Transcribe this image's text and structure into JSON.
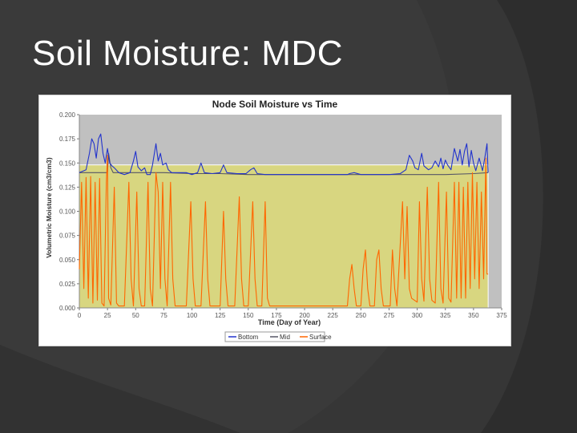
{
  "slide": {
    "title": "Soil Moisture: MDC"
  },
  "colors": {
    "background": "#3a3a3a",
    "title": "#ffffff",
    "plot_gray": "#c0c0c0",
    "highlight_fill": "#d8d680",
    "bottom": "#2233cc",
    "mid": "#555566",
    "surface": "#ff6600"
  },
  "chart_data": {
    "type": "line",
    "title": "Node Soil Moisture vs Time",
    "xlabel": "Time (Day of Year)",
    "ylabel": "Volumetric Moisture (cm3/cm3)",
    "xlim": [
      0,
      375
    ],
    "ylim": [
      0.0,
      0.2
    ],
    "xticks": [
      "0",
      "25",
      "50",
      "75",
      "100",
      "125",
      "150",
      "175",
      "200",
      "225",
      "250",
      "275",
      "300",
      "325",
      "350",
      "375"
    ],
    "yticks": [
      "0.000",
      "0.025",
      "0.050",
      "0.075",
      "0.100",
      "0.125",
      "0.150",
      "0.175",
      "0.200"
    ],
    "highlight_region": {
      "x": [
        0,
        363
      ],
      "y": [
        0.0,
        0.148
      ]
    },
    "grid": false,
    "legend_position": "bottom-center",
    "series": [
      {
        "name": "Bottom",
        "color": "#2233cc",
        "points": [
          [
            0,
            0.14
          ],
          [
            6,
            0.143
          ],
          [
            9,
            0.16
          ],
          [
            11,
            0.175
          ],
          [
            13,
            0.17
          ],
          [
            15,
            0.155
          ],
          [
            17,
            0.175
          ],
          [
            19,
            0.18
          ],
          [
            21,
            0.16
          ],
          [
            23,
            0.15
          ],
          [
            25,
            0.165
          ],
          [
            27,
            0.15
          ],
          [
            29,
            0.147
          ],
          [
            31,
            0.145
          ],
          [
            35,
            0.14
          ],
          [
            40,
            0.138
          ],
          [
            45,
            0.14
          ],
          [
            48,
            0.152
          ],
          [
            50,
            0.162
          ],
          [
            52,
            0.146
          ],
          [
            55,
            0.142
          ],
          [
            58,
            0.145
          ],
          [
            60,
            0.138
          ],
          [
            63,
            0.138
          ],
          [
            65,
            0.148
          ],
          [
            68,
            0.17
          ],
          [
            70,
            0.152
          ],
          [
            72,
            0.16
          ],
          [
            74,
            0.148
          ],
          [
            77,
            0.15
          ],
          [
            79,
            0.143
          ],
          [
            82,
            0.14
          ],
          [
            85,
            0.14
          ],
          [
            88,
            0.14
          ],
          [
            91,
            0.14
          ],
          [
            95,
            0.14
          ],
          [
            100,
            0.138
          ],
          [
            105,
            0.14
          ],
          [
            108,
            0.15
          ],
          [
            111,
            0.14
          ],
          [
            118,
            0.139
          ],
          [
            125,
            0.14
          ],
          [
            128,
            0.148
          ],
          [
            131,
            0.14
          ],
          [
            140,
            0.139
          ],
          [
            148,
            0.139
          ],
          [
            152,
            0.143
          ],
          [
            155,
            0.145
          ],
          [
            158,
            0.139
          ],
          [
            165,
            0.138
          ],
          [
            172,
            0.138
          ],
          [
            180,
            0.138
          ],
          [
            200,
            0.138
          ],
          [
            225,
            0.138
          ],
          [
            238,
            0.138
          ],
          [
            240,
            0.139
          ],
          [
            244,
            0.14
          ],
          [
            250,
            0.138
          ],
          [
            260,
            0.138
          ],
          [
            275,
            0.138
          ],
          [
            285,
            0.139
          ],
          [
            290,
            0.143
          ],
          [
            293,
            0.158
          ],
          [
            296,
            0.152
          ],
          [
            298,
            0.145
          ],
          [
            301,
            0.143
          ],
          [
            304,
            0.16
          ],
          [
            306,
            0.147
          ],
          [
            310,
            0.143
          ],
          [
            313,
            0.145
          ],
          [
            316,
            0.152
          ],
          [
            319,
            0.146
          ],
          [
            321,
            0.155
          ],
          [
            323,
            0.144
          ],
          [
            325,
            0.153
          ],
          [
            327,
            0.148
          ],
          [
            330,
            0.143
          ],
          [
            333,
            0.165
          ],
          [
            336,
            0.152
          ],
          [
            338,
            0.164
          ],
          [
            340,
            0.148
          ],
          [
            342,
            0.162
          ],
          [
            344,
            0.17
          ],
          [
            346,
            0.146
          ],
          [
            348,
            0.163
          ],
          [
            350,
            0.15
          ],
          [
            352,
            0.142
          ],
          [
            355,
            0.155
          ],
          [
            358,
            0.142
          ],
          [
            360,
            0.155
          ],
          [
            362,
            0.17
          ],
          [
            363,
            0.14
          ]
        ]
      },
      {
        "name": "Mid",
        "color": "#555566",
        "points": [
          [
            0,
            0.14
          ],
          [
            25,
            0.14
          ],
          [
            26,
            0.16
          ],
          [
            28,
            0.145
          ],
          [
            30,
            0.14
          ],
          [
            50,
            0.14
          ],
          [
            75,
            0.14
          ],
          [
            100,
            0.139
          ],
          [
            125,
            0.139
          ],
          [
            150,
            0.138
          ],
          [
            175,
            0.138
          ],
          [
            200,
            0.138
          ],
          [
            225,
            0.138
          ],
          [
            250,
            0.138
          ],
          [
            275,
            0.138
          ],
          [
            300,
            0.138
          ],
          [
            325,
            0.138
          ],
          [
            350,
            0.139
          ],
          [
            363,
            0.14
          ]
        ]
      },
      {
        "name": "Surface",
        "color": "#ff6600",
        "points": [
          [
            0,
            0.04
          ],
          [
            2,
            0.13
          ],
          [
            4,
            0.02
          ],
          [
            6,
            0.135
          ],
          [
            8,
            0.01
          ],
          [
            10,
            0.136
          ],
          [
            12,
            0.005
          ],
          [
            14,
            0.13
          ],
          [
            16,
            0.008
          ],
          [
            18,
            0.134
          ],
          [
            20,
            0.005
          ],
          [
            22,
            0.002
          ],
          [
            24,
            0.13
          ],
          [
            25,
            0.158
          ],
          [
            26,
            0.01
          ],
          [
            28,
            0.003
          ],
          [
            31,
            0.125
          ],
          [
            33,
            0.005
          ],
          [
            35,
            0.002
          ],
          [
            40,
            0.002
          ],
          [
            44,
            0.13
          ],
          [
            46,
            0.03
          ],
          [
            48,
            0.002
          ],
          [
            51,
            0.12
          ],
          [
            53,
            0.02
          ],
          [
            55,
            0.002
          ],
          [
            58,
            0.002
          ],
          [
            61,
            0.13
          ],
          [
            63,
            0.02
          ],
          [
            65,
            0.002
          ],
          [
            68,
            0.14
          ],
          [
            70,
            0.12
          ],
          [
            72,
            0.02
          ],
          [
            74,
            0.13
          ],
          [
            76,
            0.03
          ],
          [
            78,
            0.002
          ],
          [
            81,
            0.13
          ],
          [
            83,
            0.03
          ],
          [
            85,
            0.002
          ],
          [
            90,
            0.002
          ],
          [
            95,
            0.002
          ],
          [
            99,
            0.11
          ],
          [
            101,
            0.03
          ],
          [
            103,
            0.002
          ],
          [
            108,
            0.002
          ],
          [
            112,
            0.11
          ],
          [
            114,
            0.03
          ],
          [
            116,
            0.002
          ],
          [
            120,
            0.002
          ],
          [
            125,
            0.002
          ],
          [
            128,
            0.1
          ],
          [
            130,
            0.03
          ],
          [
            132,
            0.002
          ],
          [
            138,
            0.002
          ],
          [
            142,
            0.115
          ],
          [
            144,
            0.03
          ],
          [
            146,
            0.002
          ],
          [
            150,
            0.002
          ],
          [
            154,
            0.11
          ],
          [
            156,
            0.03
          ],
          [
            158,
            0.002
          ],
          [
            162,
            0.002
          ],
          [
            165,
            0.11
          ],
          [
            167,
            0.01
          ],
          [
            169,
            0.002
          ],
          [
            175,
            0.002
          ],
          [
            200,
            0.002
          ],
          [
            225,
            0.002
          ],
          [
            238,
            0.002
          ],
          [
            240,
            0.03
          ],
          [
            242,
            0.045
          ],
          [
            244,
            0.02
          ],
          [
            246,
            0.002
          ],
          [
            250,
            0.002
          ],
          [
            252,
            0.04
          ],
          [
            254,
            0.06
          ],
          [
            256,
            0.02
          ],
          [
            258,
            0.002
          ],
          [
            262,
            0.002
          ],
          [
            264,
            0.05
          ],
          [
            266,
            0.06
          ],
          [
            268,
            0.02
          ],
          [
            270,
            0.002
          ],
          [
            276,
            0.002
          ],
          [
            278,
            0.06
          ],
          [
            280,
            0.02
          ],
          [
            282,
            0.002
          ],
          [
            287,
            0.11
          ],
          [
            289,
            0.03
          ],
          [
            291,
            0.105
          ],
          [
            293,
            0.02
          ],
          [
            295,
            0.01
          ],
          [
            300,
            0.006
          ],
          [
            302,
            0.11
          ],
          [
            304,
            0.03
          ],
          [
            306,
            0.007
          ],
          [
            309,
            0.125
          ],
          [
            311,
            0.03
          ],
          [
            313,
            0.008
          ],
          [
            316,
            0.005
          ],
          [
            319,
            0.13
          ],
          [
            321,
            0.02
          ],
          [
            323,
            0.005
          ],
          [
            326,
            0.12
          ],
          [
            328,
            0.01
          ],
          [
            330,
            0.006
          ],
          [
            333,
            0.13
          ],
          [
            335,
            0.01
          ],
          [
            337,
            0.13
          ],
          [
            339,
            0.01
          ],
          [
            341,
            0.125
          ],
          [
            343,
            0.01
          ],
          [
            345,
            0.13
          ],
          [
            347,
            0.02
          ],
          [
            349,
            0.14
          ],
          [
            351,
            0.03
          ],
          [
            353,
            0.13
          ],
          [
            355,
            0.02
          ],
          [
            357,
            0.12
          ],
          [
            359,
            0.03
          ],
          [
            361,
            0.155
          ],
          [
            362,
            0.035
          ],
          [
            363,
            0.035
          ]
        ]
      }
    ]
  }
}
